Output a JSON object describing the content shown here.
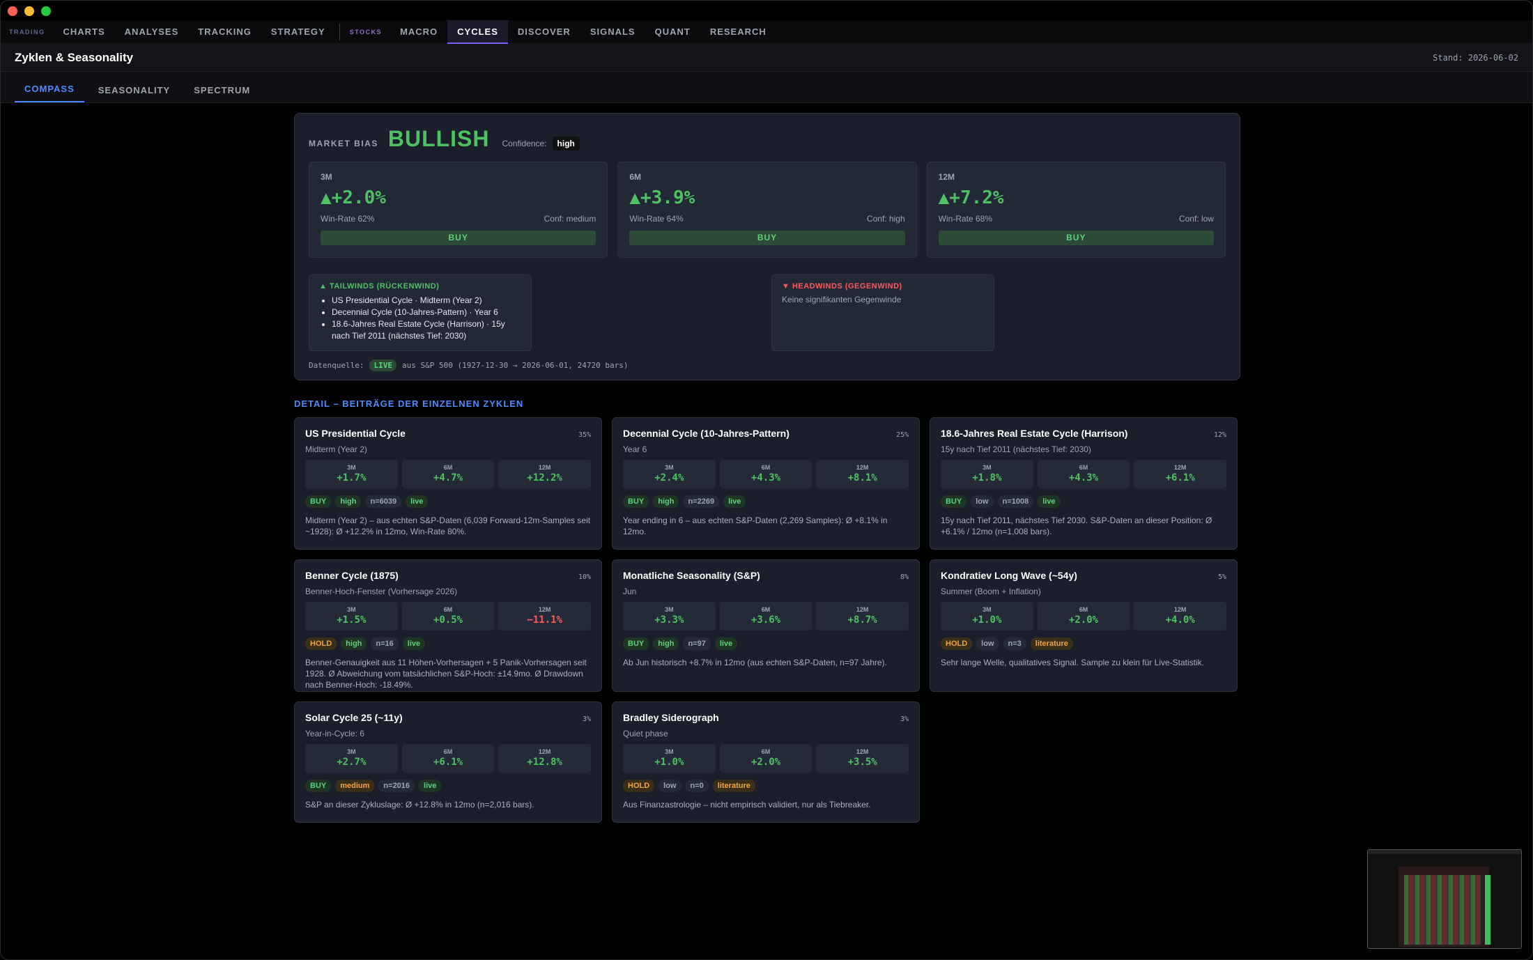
{
  "nav": {
    "group_trading": "TRADING",
    "trading_items": [
      "CHARTS",
      "ANALYSES",
      "TRACKING",
      "STRATEGY"
    ],
    "group_stocks": "STOCKS",
    "stock_items": [
      "MACRO",
      "CYCLES",
      "DISCOVER",
      "SIGNALS",
      "QUANT",
      "RESEARCH"
    ],
    "active": "CYCLES"
  },
  "page": {
    "title": "Zyklen & Seasonality",
    "stand": "Stand: 2026-06-02"
  },
  "subtabs": [
    "COMPASS",
    "SEASONALITY",
    "SPECTRUM"
  ],
  "compass": {
    "bias_label": "MARKET BIAS",
    "bias": "BULLISH",
    "confidence_label": "Confidence:",
    "confidence": "high",
    "horizons": [
      {
        "label": "3M",
        "ret": "▲+2.0%",
        "winrate": "Win-Rate 62%",
        "conf": "Conf: medium",
        "signal": "BUY"
      },
      {
        "label": "6M",
        "ret": "▲+3.9%",
        "winrate": "Win-Rate 64%",
        "conf": "Conf: high",
        "signal": "BUY"
      },
      {
        "label": "12M",
        "ret": "▲+7.2%",
        "winrate": "Win-Rate 68%",
        "conf": "Conf: low",
        "signal": "BUY"
      }
    ],
    "tailwinds_title": "▲ TAILWINDS (RÜCKENWIND)",
    "tailwinds": [
      "US Presidential Cycle · Midterm (Year 2)",
      "Decennial Cycle (10-Jahres-Pattern) · Year 6",
      "18.6-Jahres Real Estate Cycle (Harrison) · 15y nach Tief 2011 (nächstes Tief: 2030)"
    ],
    "headwinds_title": "▼ HEADWINDS (GEGENWIND)",
    "headwinds_none": "Keine signifikanten Gegenwinde",
    "source_label": "Datenquelle:",
    "source_badge": "LIVE",
    "source_text": "aus S&P 500 (1927-12-30 → 2026-06-01, 24720 bars)"
  },
  "detail_title": "DETAIL – BEITRÄGE DER EINZELNEN ZYKLEN",
  "cycles": [
    {
      "name": "US Presidential Cycle",
      "weight": "35%",
      "phase": "Midterm (Year 2)",
      "r3": "+1.7%",
      "r6": "+4.7%",
      "r12": "+12.2%",
      "signal": "BUY",
      "conf": "high",
      "n": "n=6039",
      "src": "live",
      "desc": "Midterm (Year 2) – aus echten S&P-Daten (6,039 Forward-12m-Samples seit ~1928): Ø +12.2% in 12mo, Win-Rate 80%."
    },
    {
      "name": "Decennial Cycle (10-Jahres-Pattern)",
      "weight": "25%",
      "phase": "Year 6",
      "r3": "+2.4%",
      "r6": "+4.3%",
      "r12": "+8.1%",
      "signal": "BUY",
      "conf": "high",
      "n": "n=2269",
      "src": "live",
      "desc": "Year ending in 6 – aus echten S&P-Daten (2,269 Samples): Ø +8.1% in 12mo."
    },
    {
      "name": "18.6-Jahres Real Estate Cycle (Harrison)",
      "weight": "12%",
      "phase": "15y nach Tief 2011 (nächstes Tief: 2030)",
      "r3": "+1.8%",
      "r6": "+4.3%",
      "r12": "+6.1%",
      "signal": "BUY",
      "conf": "low",
      "n": "n=1008",
      "src": "live",
      "desc": "15y nach Tief 2011, nächstes Tief 2030. S&P-Daten an dieser Position: Ø +6.1% / 12mo (n=1,008 bars)."
    },
    {
      "name": "Benner Cycle (1875)",
      "weight": "10%",
      "phase": "Benner-Hoch-Fenster (Vorhersage 2026)",
      "r3": "+1.5%",
      "r6": "+0.5%",
      "r12": "−11.1%",
      "signal": "HOLD",
      "conf": "high",
      "n": "n=16",
      "src": "live",
      "desc": "Benner-Genauigkeit aus 11 Höhen-Vorhersagen + 5 Panik-Vorhersagen seit 1928. Ø Abweichung vom tatsächlichen S&P-Hoch: ±14.9mo. Ø Drawdown nach Benner-Hoch: -18.49%."
    },
    {
      "name": "Monatliche Seasonality (S&P)",
      "weight": "8%",
      "phase": "Jun",
      "r3": "+3.3%",
      "r6": "+3.6%",
      "r12": "+8.7%",
      "signal": "BUY",
      "conf": "high",
      "n": "n=97",
      "src": "live",
      "desc": "Ab Jun historisch +8.7% in 12mo (aus echten S&P-Daten, n=97 Jahre)."
    },
    {
      "name": "Kondratiev Long Wave (~54y)",
      "weight": "5%",
      "phase": "Summer (Boom + Inflation)",
      "r3": "+1.0%",
      "r6": "+2.0%",
      "r12": "+4.0%",
      "signal": "HOLD",
      "conf": "low",
      "n": "n=3",
      "src": "literature",
      "desc": "Sehr lange Welle, qualitatives Signal. Sample zu klein für Live-Statistik."
    },
    {
      "name": "Solar Cycle 25 (~11y)",
      "weight": "3%",
      "phase": "Year-in-Cycle: 6",
      "r3": "+2.7%",
      "r6": "+6.1%",
      "r12": "+12.8%",
      "signal": "BUY",
      "conf": "medium",
      "n": "n=2016",
      "src": "live",
      "desc": "S&P an dieser Zykluslage: Ø +12.8% in 12mo (n=2,016 bars)."
    },
    {
      "name": "Bradley Siderograph",
      "weight": "3%",
      "phase": "Quiet phase",
      "r3": "+1.0%",
      "r6": "+2.0%",
      "r12": "+3.5%",
      "signal": "HOLD",
      "conf": "low",
      "n": "n=0",
      "src": "literature",
      "desc": "Aus Finanzastrologie – nicht empirisch validiert, nur als Tiebreaker."
    }
  ],
  "horizon_labels": [
    "3M",
    "6M",
    "12M"
  ]
}
